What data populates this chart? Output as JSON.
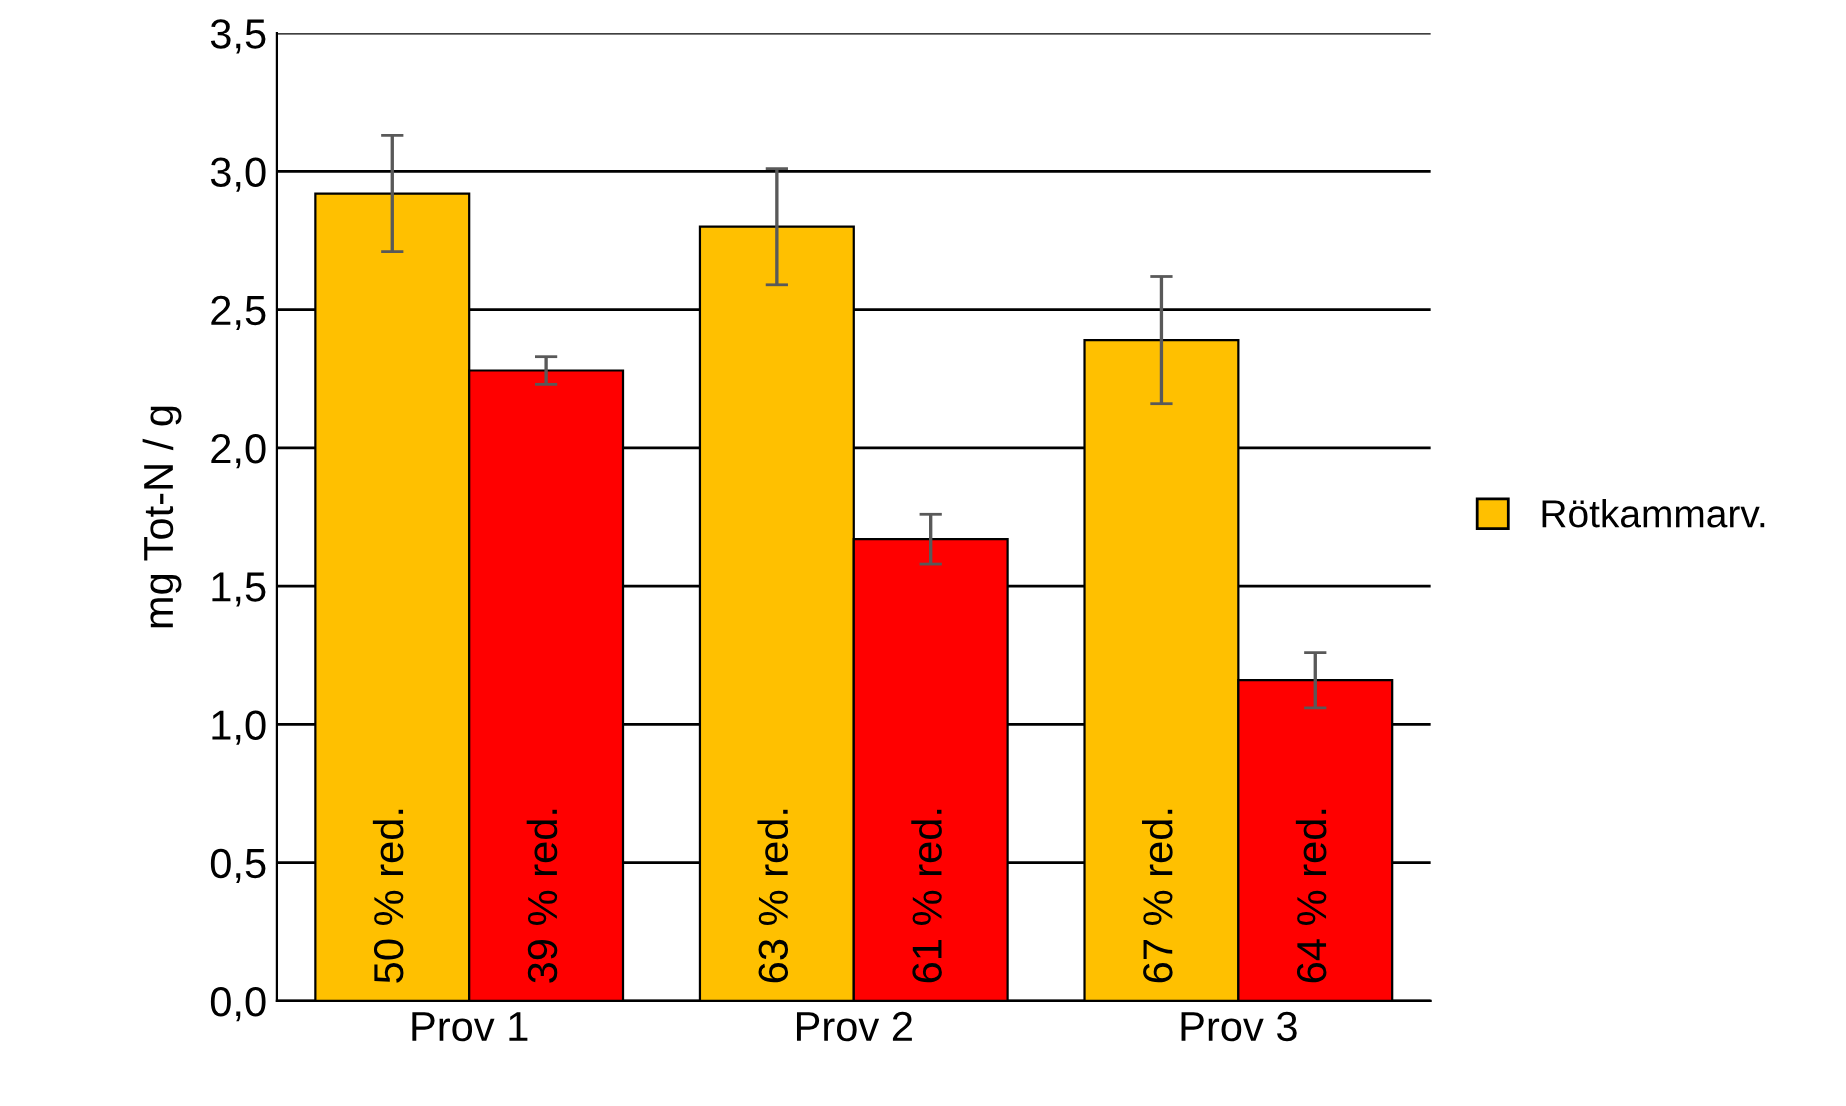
{
  "chart_data": {
    "type": "bar",
    "ylabel": "mg Tot-N / g",
    "categories": [
      "Prov 1",
      "Prov 2",
      "Prov 3"
    ],
    "series": [
      {
        "name": "Rötkammarv.",
        "color": "#ffc000",
        "values": [
          2.92,
          2.8,
          2.39
        ],
        "errors": [
          0.21,
          0.21,
          0.23
        ]
      },
      {
        "color": "#ff0000",
        "values": [
          2.28,
          1.67,
          1.16
        ],
        "errors": [
          0.05,
          0.09,
          0.1
        ]
      }
    ],
    "annotations": [
      "50 % red.",
      "39 % red.",
      "63 % red.",
      "61 % red.",
      "67 % red.",
      "64 % red."
    ],
    "ylim": [
      0,
      3.5
    ],
    "yticks": [
      {
        "value": 0,
        "label": "0,0"
      },
      {
        "value": 0.5,
        "label": "0,5"
      },
      {
        "value": 1,
        "label": "1,0"
      },
      {
        "value": 1.5,
        "label": "1,5"
      },
      {
        "value": 2,
        "label": "2,0"
      },
      {
        "value": 2.5,
        "label": "2,5"
      },
      {
        "value": 3,
        "label": "3,0"
      },
      {
        "value": 3.5,
        "label": "3,5"
      }
    ],
    "grid": "y",
    "legend": "right"
  }
}
